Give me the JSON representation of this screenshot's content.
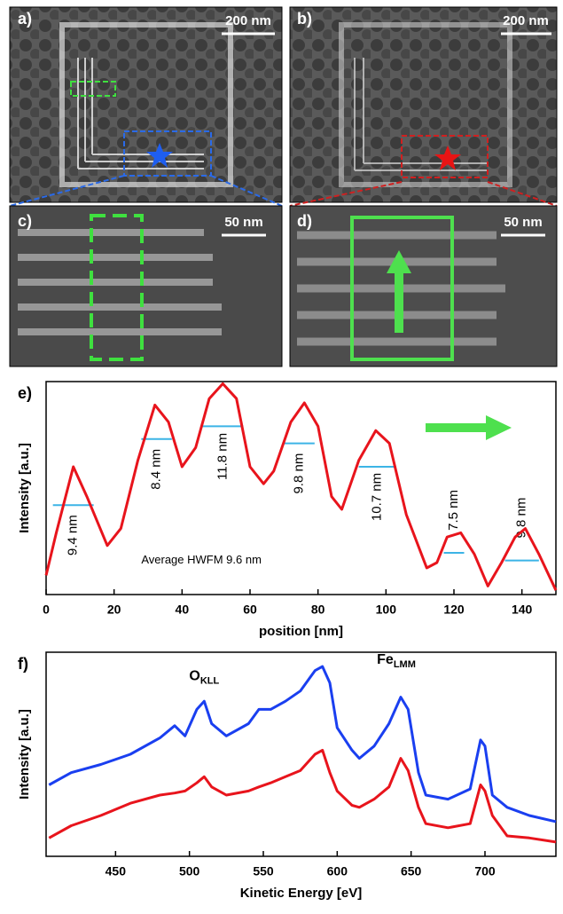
{
  "panels": [
    {
      "label": "a)",
      "scale_bar": "200 nm"
    },
    {
      "label": "b)",
      "scale_bar": "200 nm"
    },
    {
      "label": "c)",
      "scale_bar": "50 nm"
    },
    {
      "label": "d)",
      "scale_bar": "50 nm"
    }
  ],
  "chart_data": [
    {
      "type": "line",
      "panel_label": "e)",
      "x_label": "position [nm]",
      "y_label": "Intensity [a.u.]",
      "annotation": "Average HWFM 9.6 nm",
      "x": [
        0,
        3,
        8,
        12,
        18,
        22,
        27,
        32,
        36,
        40,
        44,
        48,
        52,
        56,
        60,
        64,
        67,
        72,
        76,
        80,
        84,
        87,
        92,
        97,
        101,
        106,
        112,
        115,
        118,
        122,
        126,
        130,
        134,
        138,
        141,
        145,
        150
      ],
      "series": [
        {
          "color": "#e8141c",
          "values": [
            0.9,
            2.9,
            6.0,
            4.6,
            2.3,
            3.1,
            6.3,
            8.9,
            8.1,
            6.0,
            6.9,
            9.2,
            9.9,
            9.2,
            6.0,
            5.2,
            5.8,
            8.1,
            9.0,
            7.9,
            4.6,
            4.0,
            6.3,
            7.7,
            7.1,
            3.75,
            1.25,
            1.5,
            2.7,
            2.9,
            1.9,
            0.4,
            1.5,
            2.7,
            3.1,
            1.9,
            0.2
          ]
        }
      ],
      "xlim": [
        0,
        150
      ],
      "xticks": [
        0,
        20,
        40,
        60,
        80,
        100,
        120,
        140
      ],
      "ylim": [
        0,
        10
      ],
      "fwhm_color": "#3cb4e6",
      "fwhm": [
        {
          "x": [
            2,
            14
          ],
          "y": 4.2,
          "label": "9.4 nm"
        },
        {
          "x": [
            28,
            37
          ],
          "y": 7.3,
          "label": "8.4 nm"
        },
        {
          "x": [
            46,
            58
          ],
          "y": 7.9,
          "label": "11.8 nm"
        },
        {
          "x": [
            70,
            79
          ],
          "y": 7.1,
          "label": "9.8 nm"
        },
        {
          "x": [
            92,
            103
          ],
          "y": 6.0,
          "label": "10.7 nm"
        },
        {
          "x": [
            117,
            123
          ],
          "y": 1.96,
          "label": "7.5 nm"
        },
        {
          "x": [
            135,
            145
          ],
          "y": 1.6,
          "label": "9.8 nm"
        }
      ]
    },
    {
      "type": "line",
      "panel_label": "f)",
      "x_label": "Kinetic Energy [eV]",
      "y_label": "Intensity [a.u.]",
      "peaks": [
        {
          "element": "O",
          "transition": "KLL",
          "x": 510,
          "y": 8.8
        },
        {
          "element": "Fe",
          "transition": "LMM",
          "x": 640,
          "y": 9.6
        }
      ],
      "x": [
        405,
        420,
        440,
        460,
        480,
        490,
        497,
        505,
        510,
        515,
        525,
        540,
        547,
        555,
        565,
        575,
        585,
        590,
        595,
        600,
        610,
        615,
        625,
        635,
        643,
        648,
        655,
        660,
        675,
        690,
        697,
        700,
        705,
        715,
        730,
        748
      ],
      "series": [
        {
          "color": "#1a3ff0",
          "values": [
            3.5,
            4.1,
            4.5,
            5.0,
            5.8,
            6.4,
            5.9,
            7.2,
            7.6,
            6.5,
            5.9,
            6.5,
            7.2,
            7.2,
            7.6,
            8.1,
            9.1,
            9.3,
            8.5,
            6.3,
            5.2,
            4.8,
            5.4,
            6.5,
            7.8,
            7.2,
            4.1,
            3.0,
            2.8,
            3.3,
            5.7,
            5.4,
            3.0,
            2.4,
            2.0,
            1.7
          ]
        },
        {
          "color": "#e8141c",
          "values": [
            0.9,
            1.5,
            2.0,
            2.6,
            3.0,
            3.1,
            3.2,
            3.6,
            3.9,
            3.4,
            3.0,
            3.2,
            3.4,
            3.6,
            3.9,
            4.2,
            5.0,
            5.2,
            4.1,
            3.2,
            2.5,
            2.4,
            2.8,
            3.4,
            4.8,
            4.2,
            2.4,
            1.6,
            1.4,
            1.6,
            3.5,
            3.2,
            2.0,
            1.0,
            0.9,
            0.7
          ]
        }
      ],
      "xlim": [
        403,
        748
      ],
      "xticks": [
        450,
        500,
        550,
        600,
        650,
        700
      ],
      "ylim": [
        0,
        10
      ]
    }
  ]
}
